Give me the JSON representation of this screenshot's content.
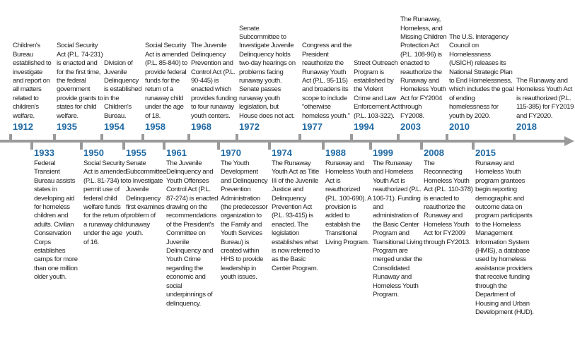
{
  "above": [
    {
      "year": "1912",
      "text": "Children's Bureau established to investigate and report on all matters related to children's welfare."
    },
    {
      "year": "1935",
      "text": "Social Security Act (P.L. 74-231) is enacted and for the first time, the federal government provide grants to states for child welfare."
    },
    {
      "year": "1954",
      "text": "Division of Juvenile Delinquency is established in the Children's Bureau."
    },
    {
      "year": "1958",
      "text": "Social Security Act is amended (P.L. 85-840) to provide federal funds for the return of a runaway child under the age of 18."
    },
    {
      "year": "1968",
      "text": "The Juvenile Delinquency Prevention and Control Act (P.L. 90-445) is enacted which provides funding to four runaway youth centers."
    },
    {
      "year": "1972",
      "text": "Senate Subcommittee to Investigate Juvenile Delinquency holds two-day hearings on problems facing runaway youth. Senate passes runaway youth legislation, but House does not act."
    },
    {
      "year": "1977",
      "text": "Congress and the President reauthorize the Runaway Youth Act (P.L. 95-115) and broadens its scope to include “otherwise homeless youth.”"
    },
    {
      "year": "1994",
      "text": "Street Outreach Program is established by the Violent Crime and Law Enforcement Act (P.L. 103-322)."
    },
    {
      "year": "2003",
      "text": "The Runaway, Homeless, and Missing Children Protection Act (P.L. 108-96) is enacted to reauthorize the Runaway and Homeless Youth Act for FY2004 through FY2008."
    },
    {
      "year": "2010",
      "text": "The U.S. Interagency Council on Homelessness (USICH) releases its National Strategic Plan to End Homelessness, which includes the goal of ending homelessness for youth by 2020."
    },
    {
      "year": "2018",
      "text": "The Runaway and Homeless Youth Act is reauthorized (P.L. 115-385) for FY2019 and FY2020."
    }
  ],
  "below": [
    {
      "year": "1933",
      "text": "Federal Transient Bureau assists states in developing aid for homeless children and adults. Civilian Conservation Corps establishes camps for more than one million older youth."
    },
    {
      "year": "1950",
      "text": "Social Security Act is amended (P.L. 81-734) to permit use of federal child welfare funds for the return of a runaway child under the age of 16."
    },
    {
      "year": "1955",
      "text": "Senate Subcommittee to Investigate Juvenile Delinquency first examines problem of runaway youth."
    },
    {
      "year": "1961",
      "text": "The Juvenile Delinquency and Youth Offenses Control Act (P.L. 87-274) is enacted drawing on the recommendations of the President's Committee on Juvenile Delinquency and Youth Crime regarding the economic and social underpinnings of delinquency."
    },
    {
      "year": "1970",
      "text": "The Youth Development and Delinquency Prevention Administration (the predecessor organization to the Family and Youth Services Bureau) is created within HHS to provide leadership in youth issues."
    },
    {
      "year": "1974",
      "text": "The Runaway Youth Act as Title III of the Juvenile Justice and Delinquency Prevention Act (P.L. 93-415) is enacted. The legislation establishes what is now referred to as the Basic Center Program."
    },
    {
      "year": "1988",
      "text": "Runaway and Homeless Youth Act is reauthorized (P.L. 100-690). A provision is added to establish the Transitional Living Program."
    },
    {
      "year": "1999",
      "text": "The Runaway and Homeless Youth Act is reauthorized (P.L. 106-71). Funding and administration of the Basic Center Program and Transitional Living Program are merged under the Consolidated Runaway and Homeless Youth Program."
    },
    {
      "year": "2008",
      "text": "The Reconnecting Homeless Youth Act (P.L. 110-378) is enacted to reauthorize the Runaway and Homeless Youth Act for FY2009 through FY2013."
    },
    {
      "year": "2015",
      "text": "Runaway and Homeless Youth program grantees begin reporting demographic and outcome data on program participants to the Homeless Management Information System (HMIS), a database used by homeless assistance providers that receive funding through the Department of Housing and Urban Development (HUD)."
    }
  ]
}
